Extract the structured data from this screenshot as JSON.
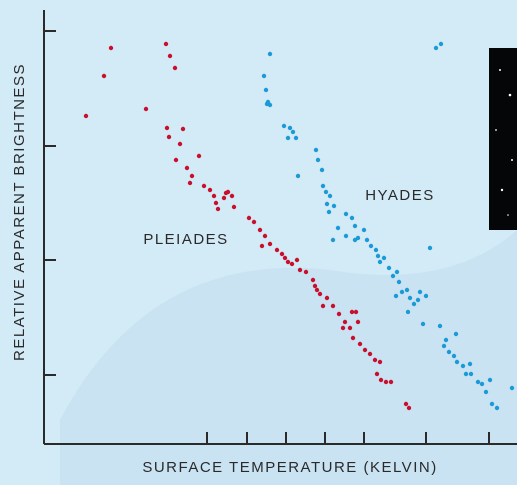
{
  "chart_data": {
    "type": "scatter",
    "x_label": "SURFACE TEMPERATURE (KELVIN)",
    "y_label": "RELATIVE APPARENT BRIGHTNESS",
    "xlim": [
      0,
      473
    ],
    "ylim": [
      0,
      434
    ],
    "xticks": [
      163,
      203,
      242,
      281,
      320,
      382,
      445
    ],
    "yticks": [
      69,
      184,
      298,
      413
    ],
    "series": [
      {
        "name": "PLEIADES",
        "color": "#c8102e",
        "x": [
          42,
          60,
          67,
          102,
          122,
          126,
          131,
          123,
          125,
          139,
          136,
          132,
          143,
          148,
          146,
          155,
          160,
          166,
          170,
          172,
          174,
          180,
          184,
          188,
          190,
          182,
          205,
          210,
          216,
          221,
          218,
          226,
          233,
          238,
          241,
          244,
          248,
          253,
          256,
          262,
          269,
          271,
          273,
          276,
          283,
          279,
          289,
          295,
          301,
          299,
          306,
          308,
          312,
          314,
          309,
          316,
          321,
          326,
          331,
          336,
          333,
          337,
          342,
          347,
          362,
          365
        ],
        "y": [
          328,
          368,
          396,
          335,
          400,
          388,
          376,
          316,
          307,
          315,
          300,
          284,
          276,
          268,
          261,
          288,
          258,
          254,
          248,
          241,
          235,
          246,
          252,
          248,
          237,
          251,
          226,
          222,
          214,
          208,
          198,
          200,
          194,
          190,
          186,
          182,
          180,
          184,
          174,
          172,
          164,
          158,
          154,
          150,
          146,
          138,
          138,
          130,
          122,
          116,
          116,
          132,
          132,
          122,
          106,
          100,
          94,
          90,
          84,
          82,
          70,
          64,
          62,
          62,
          40,
          36
        ]
      },
      {
        "name": "HYADES",
        "color": "#1a9ad6",
        "x": [
          226,
          220,
          222,
          224,
          226,
          223,
          240,
          246,
          249,
          252,
          244,
          254,
          272,
          274,
          278,
          279,
          282,
          286,
          283,
          290,
          285,
          302,
          294,
          308,
          311,
          314,
          320,
          323,
          327,
          332,
          334,
          336,
          340,
          345,
          349,
          353,
          355,
          352,
          358,
          363,
          366,
          370,
          374,
          376,
          382,
          364,
          386,
          379,
          396,
          402,
          400,
          405,
          412,
          410,
          413,
          419,
          422,
          427,
          426,
          434,
          438,
          446,
          442,
          448,
          453,
          468,
          392,
          397,
          311,
          289,
          302
        ],
        "y": [
          390,
          368,
          354,
          342,
          339,
          340,
          318,
          316,
          312,
          306,
          306,
          268,
          294,
          284,
          274,
          258,
          252,
          248,
          240,
          238,
          232,
          230,
          216,
          226,
          218,
          206,
          214,
          204,
          198,
          194,
          188,
          182,
          186,
          176,
          168,
          172,
          162,
          148,
          152,
          154,
          146,
          140,
          144,
          152,
          148,
          132,
          196,
          120,
          118,
          104,
          98,
          92,
          110,
          88,
          82,
          78,
          70,
          70,
          80,
          62,
          60,
          64,
          52,
          40,
          36,
          56,
          396,
          400,
          204,
          204,
          208
        ]
      }
    ]
  }
}
